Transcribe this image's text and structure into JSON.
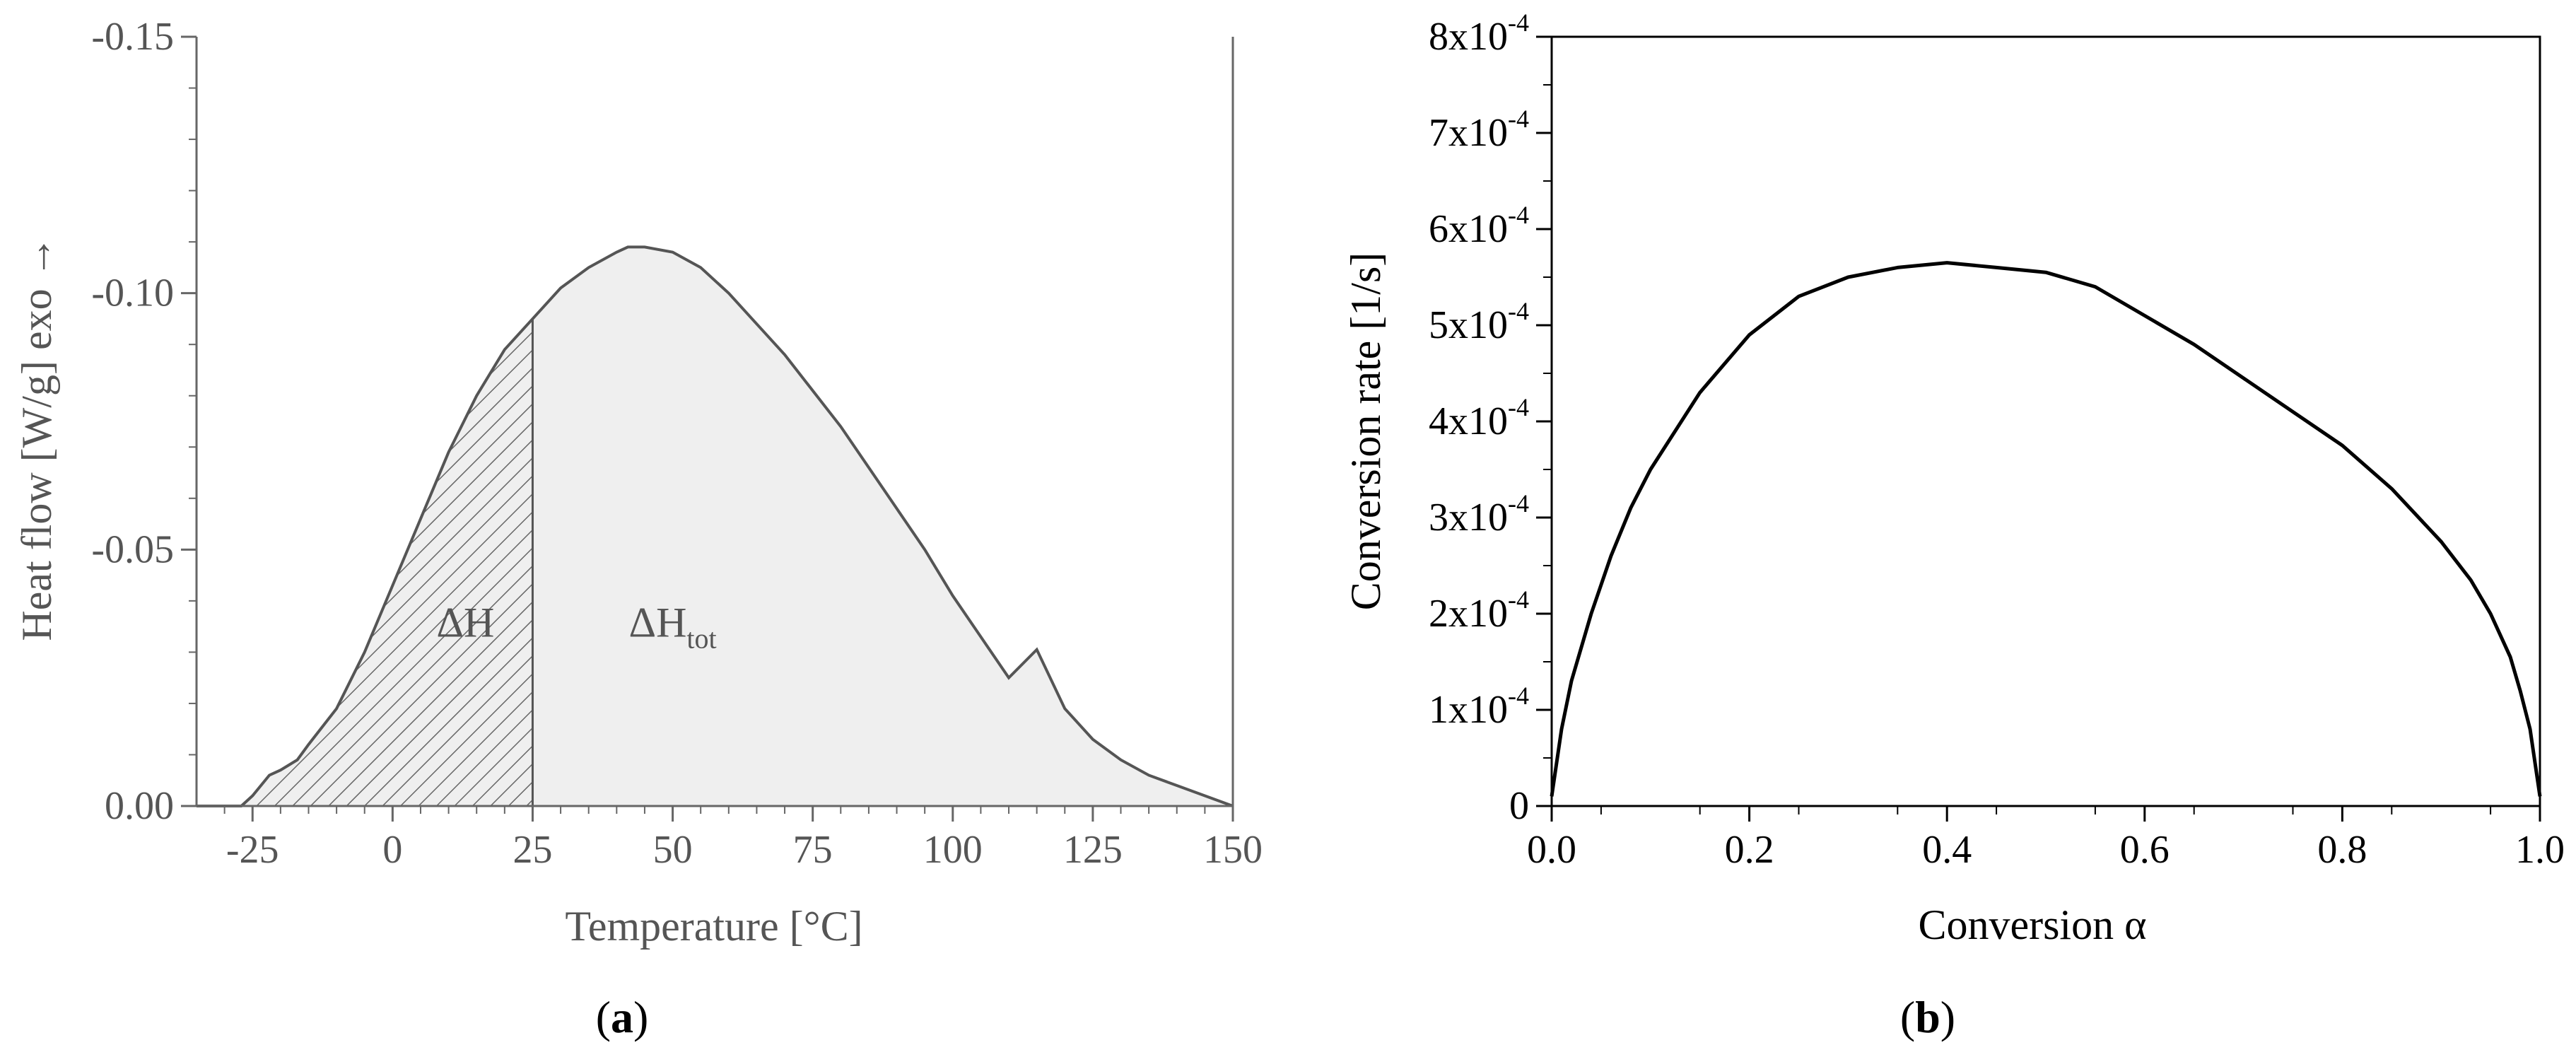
{
  "chart_data": [
    {
      "panel": "(a)",
      "panel_label": {
        "open": "(",
        "letter": "a",
        "close": ")"
      },
      "type": "area",
      "xlabel": "Temperature [°C]",
      "ylabel": "Heat flow [W/g] exo →",
      "xlim": [
        -35,
        150
      ],
      "ylim": [
        0.0,
        -0.15
      ],
      "y_axis_inverted": true,
      "x_ticks": [
        -25,
        0,
        25,
        50,
        75,
        100,
        125,
        150
      ],
      "x_tick_labels": [
        "-25",
        "0",
        "25",
        "50",
        "75",
        "100",
        "125",
        "150"
      ],
      "y_ticks": [
        0.0,
        -0.05,
        -0.1,
        -0.15
      ],
      "y_tick_labels": [
        "0.00",
        "-0.05",
        "-0.10",
        "-0.15"
      ],
      "grid": false,
      "series": [
        {
          "x": [
            -35,
            -30,
            -27,
            -25,
            -22,
            -20,
            -17,
            -15,
            -10,
            -5,
            0,
            5,
            10,
            15,
            20,
            25,
            30,
            35,
            40,
            42,
            45,
            50,
            55,
            60,
            65,
            70,
            75,
            80,
            85,
            90,
            95,
            100,
            105,
            110,
            115,
            120,
            125,
            130,
            135,
            140,
            145,
            150
          ],
          "y": [
            0.0,
            0.0,
            0.0,
            -0.002,
            -0.006,
            -0.007,
            -0.009,
            -0.012,
            -0.019,
            -0.03,
            -0.043,
            -0.056,
            -0.069,
            -0.08,
            -0.089,
            -0.095,
            -0.101,
            -0.105,
            -0.108,
            -0.109,
            -0.109,
            -0.108,
            -0.105,
            -0.1,
            -0.094,
            -0.088,
            -0.081,
            -0.074,
            -0.066,
            -0.058,
            -0.05,
            -0.041,
            -0.033,
            -0.025,
            -0.0305,
            -0.019,
            -0.013,
            -0.009,
            -0.006,
            -0.004,
            -0.002,
            0.0
          ]
        }
      ],
      "annotations": [
        {
          "text": "ΔH",
          "x": 13,
          "y": -0.033
        },
        {
          "text": "ΔH",
          "subscript": "tot",
          "x": 50,
          "y": -0.033
        }
      ],
      "hatched_region_x": [
        -27,
        25
      ]
    },
    {
      "panel": "(b)",
      "panel_label": {
        "open": "(",
        "letter": "b",
        "close": ")"
      },
      "type": "line",
      "xlabel": "Conversion α",
      "ylabel": "Conversion rate [1/s]",
      "xlim": [
        0.0,
        1.0
      ],
      "ylim": [
        0,
        0.0008
      ],
      "x_ticks": [
        0.0,
        0.2,
        0.4,
        0.6,
        0.8,
        1.0
      ],
      "x_tick_labels": [
        "0.0",
        "0.2",
        "0.4",
        "0.6",
        "0.8",
        "1.0"
      ],
      "y_ticks": [
        0,
        0.0001,
        0.0002,
        0.0003,
        0.0004,
        0.0005,
        0.0006,
        0.0007,
        0.0008
      ],
      "y_tick_labels": [
        {
          "mantissa": "0"
        },
        {
          "mantissa": "1x10",
          "exponent": "-4"
        },
        {
          "mantissa": "2x10",
          "exponent": "-4"
        },
        {
          "mantissa": "3x10",
          "exponent": "-4"
        },
        {
          "mantissa": "4x10",
          "exponent": "-4"
        },
        {
          "mantissa": "5x10",
          "exponent": "-4"
        },
        {
          "mantissa": "6x10",
          "exponent": "-4"
        },
        {
          "mantissa": "7x10",
          "exponent": "-4"
        },
        {
          "mantissa": "8x10",
          "exponent": "-4"
        }
      ],
      "grid": false,
      "series": [
        {
          "x": [
            0.0,
            0.01,
            0.02,
            0.04,
            0.06,
            0.08,
            0.1,
            0.15,
            0.2,
            0.25,
            0.3,
            0.35,
            0.4,
            0.45,
            0.5,
            0.55,
            0.6,
            0.65,
            0.7,
            0.75,
            0.8,
            0.85,
            0.9,
            0.93,
            0.95,
            0.97,
            0.98,
            0.99,
            1.0
          ],
          "y": [
            1e-05,
            8e-05,
            0.00013,
            0.0002,
            0.00026,
            0.00031,
            0.00035,
            0.00043,
            0.00049,
            0.00053,
            0.00055,
            0.00056,
            0.000565,
            0.00056,
            0.000555,
            0.00054,
            0.00051,
            0.00048,
            0.000445,
            0.00041,
            0.000375,
            0.00033,
            0.000275,
            0.000235,
            0.0002,
            0.000155,
            0.00012,
            8e-05,
            1e-05
          ]
        }
      ]
    }
  ]
}
